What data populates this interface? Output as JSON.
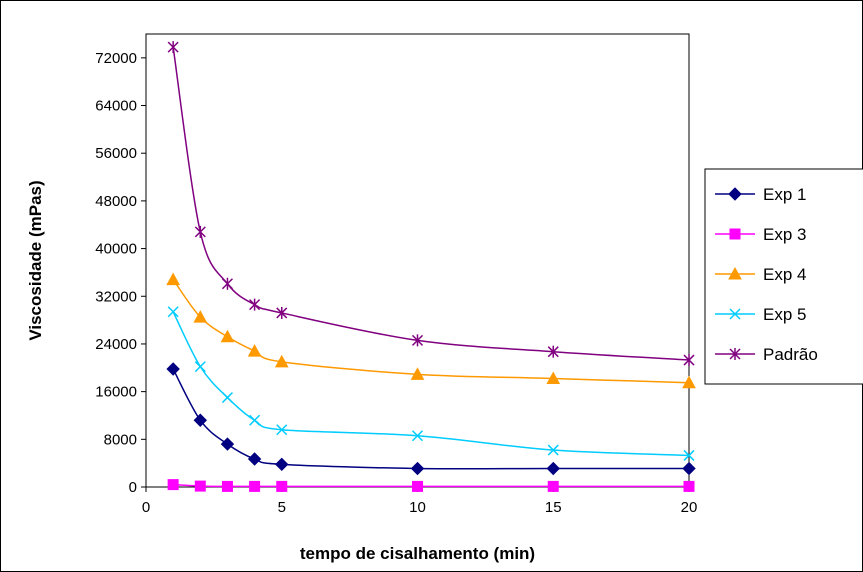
{
  "chart_data": {
    "type": "line",
    "title": "",
    "xlabel": "tempo de cisalhamento (min)",
    "ylabel": "Viscosidade (mPas)",
    "xlim": [
      0,
      20
    ],
    "ylim": [
      0,
      76000
    ],
    "xticks": [
      0,
      5,
      10,
      15,
      20
    ],
    "yticks": [
      0,
      8000,
      16000,
      24000,
      32000,
      40000,
      48000,
      56000,
      64000,
      72000
    ],
    "grid": false,
    "legend_position": "right",
    "x": [
      1,
      2,
      3,
      4,
      5,
      10,
      15,
      20
    ],
    "series": [
      {
        "name": "Exp 1",
        "color": "#000080",
        "marker": "diamond",
        "values": [
          19800,
          11200,
          7200,
          4700,
          3800,
          3100,
          3100,
          3100
        ]
      },
      {
        "name": "Exp 3",
        "color": "#FF00FF",
        "marker": "square",
        "values": [
          400,
          150,
          100,
          100,
          100,
          100,
          100,
          100
        ]
      },
      {
        "name": "Exp 4",
        "color": "#FF9900",
        "marker": "triangle",
        "values": [
          34800,
          28500,
          25200,
          22800,
          21000,
          18900,
          18200,
          17500
        ]
      },
      {
        "name": "Exp 5",
        "color": "#00CCFF",
        "marker": "x",
        "values": [
          29400,
          20200,
          15000,
          11200,
          9600,
          8600,
          6200,
          5300
        ]
      },
      {
        "name": "Padrão",
        "color": "#800080",
        "marker": "star",
        "values": [
          73800,
          42800,
          34100,
          30600,
          29200,
          24600,
          22700,
          21300
        ]
      }
    ]
  }
}
